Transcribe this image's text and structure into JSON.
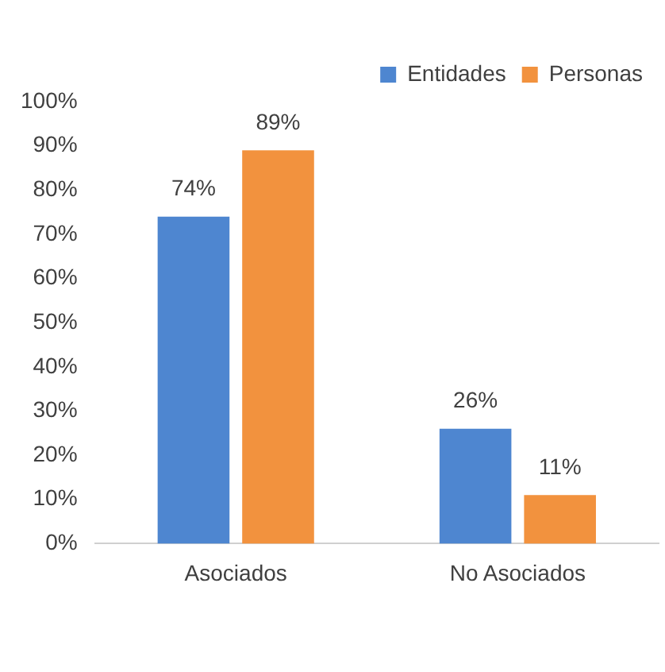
{
  "chart_data": {
    "type": "bar",
    "categories": [
      "Asociados",
      "No Asociados"
    ],
    "series": [
      {
        "name": "Entidades",
        "color": "#4e86d0",
        "values": [
          74,
          26
        ],
        "value_labels": [
          "74%",
          "26%"
        ]
      },
      {
        "name": "Personas",
        "color": "#f2923e",
        "values": [
          89,
          11
        ],
        "value_labels": [
          "89%",
          "11%"
        ]
      }
    ],
    "ylim": [
      0,
      100
    ],
    "yticks": [
      {
        "value": 0,
        "label": "0%"
      },
      {
        "value": 10,
        "label": "10%"
      },
      {
        "value": 20,
        "label": "20%"
      },
      {
        "value": 30,
        "label": "30%"
      },
      {
        "value": 40,
        "label": "40%"
      },
      {
        "value": 50,
        "label": "50%"
      },
      {
        "value": 60,
        "label": "60%"
      },
      {
        "value": 70,
        "label": "70%"
      },
      {
        "value": 80,
        "label": "80%"
      },
      {
        "value": 90,
        "label": "90%"
      },
      {
        "value": 100,
        "label": "100%"
      }
    ],
    "grid": false,
    "legend": "top right"
  }
}
